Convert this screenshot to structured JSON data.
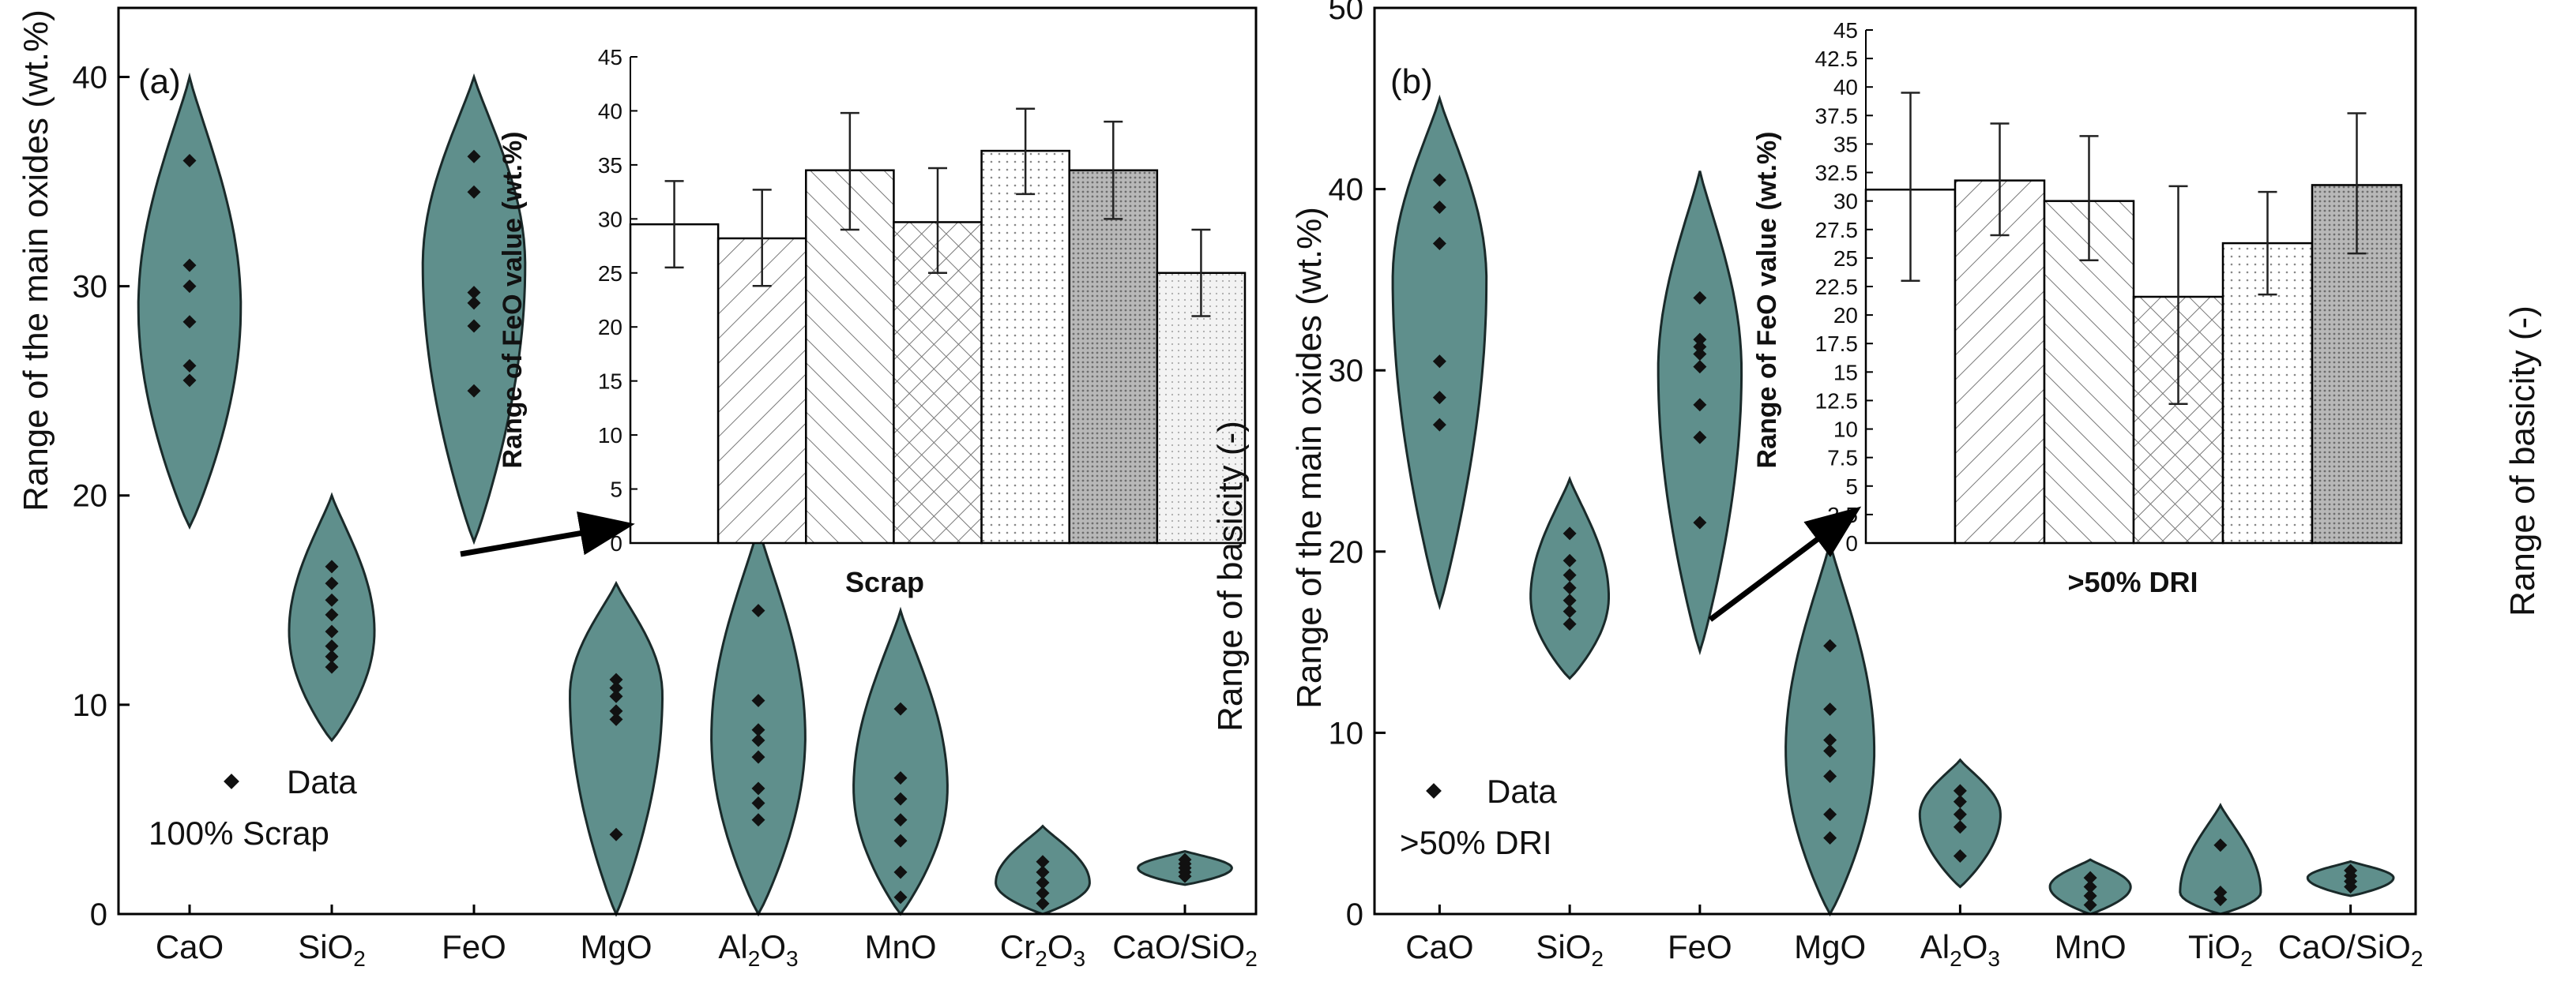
{
  "chart_data": [
    {
      "type": "violin",
      "panel_label": "(a)",
      "ylabel": "Range of the main oxides (wt.%)",
      "right_ylabel": "",
      "ylim": [
        0,
        43
      ],
      "yticks": [
        0,
        10,
        20,
        30,
        40
      ],
      "categories": [
        {
          "name": "CaO",
          "base": "CaO",
          "sub": "",
          "tail": ""
        },
        {
          "name": "SiO2",
          "base": "SiO",
          "sub": "2",
          "tail": ""
        },
        {
          "name": "FeO",
          "base": "FeO",
          "sub": "",
          "tail": ""
        },
        {
          "name": "MgO",
          "base": "MgO",
          "sub": "",
          "tail": ""
        },
        {
          "name": "Al2O3",
          "base": "Al",
          "sub": "2",
          "tail": "O",
          "sub2": "3"
        },
        {
          "name": "MnO",
          "base": "MnO",
          "sub": "",
          "tail": ""
        },
        {
          "name": "Cr2O3",
          "base": "Cr",
          "sub": "2",
          "tail": "O",
          "sub2": "3"
        },
        {
          "name": "CaO/SiO2",
          "base": "CaO/SiO",
          "sub": "2",
          "tail": ""
        }
      ],
      "violins": [
        {
          "category": "CaO",
          "min": 18.5,
          "max": 40,
          "bulge": 29,
          "width": 0.72,
          "points": [
            25.5,
            26.2,
            28.3,
            30.0,
            31.0,
            36.0
          ]
        },
        {
          "category": "SiO2",
          "min": 8.3,
          "max": 20,
          "bulge": 13.5,
          "width": 0.6,
          "points": [
            11.8,
            12.3,
            12.8,
            13.5,
            14.3,
            15.0,
            15.8,
            16.6
          ]
        },
        {
          "category": "FeO",
          "min": 17.8,
          "max": 40,
          "bulge": 31,
          "width": 0.72,
          "points": [
            25.0,
            28.1,
            29.2,
            29.7,
            34.5,
            36.2
          ]
        },
        {
          "category": "MgO",
          "min": 0,
          "max": 15.8,
          "bulge": 10.5,
          "width": 0.65,
          "points": [
            3.8,
            9.3,
            9.7,
            10.4,
            10.8,
            11.2
          ]
        },
        {
          "category": "Al2O3",
          "min": 0,
          "max": 18.5,
          "bulge": 8.5,
          "width": 0.66,
          "points": [
            4.5,
            5.3,
            6.0,
            7.5,
            8.3,
            8.8,
            10.2,
            14.5
          ]
        },
        {
          "category": "MnO",
          "min": 0,
          "max": 14.5,
          "bulge": 6.0,
          "width": 0.66,
          "points": [
            0.8,
            2.0,
            3.5,
            4.5,
            5.5,
            6.5,
            9.8
          ]
        },
        {
          "category": "Cr2O3",
          "min": 0,
          "max": 4.2,
          "bulge": 1.5,
          "width": 0.66,
          "points": [
            0.5,
            1.0,
            1.5,
            2.0,
            2.5
          ]
        },
        {
          "category": "CaO/SiO2",
          "min": 1.4,
          "max": 3.0,
          "bulge": 2.2,
          "width": 0.66,
          "points": [
            1.8,
            2.0,
            2.2,
            2.4,
            2.6
          ]
        }
      ],
      "legend": {
        "marker_label": "Data",
        "note": "100% Scrap"
      },
      "inset": {
        "type": "bar",
        "ylabel": "Range of FeO value (wt.%)",
        "xlabel": "Scrap",
        "ylim": [
          0,
          45
        ],
        "yticks": [
          0,
          5,
          10,
          15,
          20,
          25,
          30,
          35,
          40,
          45
        ],
        "ytick_labels": [
          "0",
          "5",
          "10",
          "15",
          "20",
          "25",
          "30",
          "35",
          "40",
          "45"
        ],
        "bars": [
          {
            "value": 29.5,
            "err_low": 25.5,
            "err_high": 33.5,
            "pattern": "none"
          },
          {
            "value": 28.2,
            "err_low": 23.8,
            "err_high": 32.7,
            "pattern": "diag-fwd"
          },
          {
            "value": 34.5,
            "err_low": 29.0,
            "err_high": 39.8,
            "pattern": "diag-back"
          },
          {
            "value": 29.7,
            "err_low": 25.0,
            "err_high": 34.7,
            "pattern": "cross"
          },
          {
            "value": 36.3,
            "err_low": 32.3,
            "err_high": 40.2,
            "pattern": "dots"
          },
          {
            "value": 34.5,
            "err_low": 30.0,
            "err_high": 39.0,
            "pattern": "dense-dots"
          },
          {
            "value": 25.0,
            "err_low": 21.0,
            "err_high": 29.0,
            "pattern": "light-dots"
          }
        ]
      }
    },
    {
      "type": "violin",
      "panel_label": "(b)",
      "ylabel": "Range of the main oxides (wt.%)",
      "left_outer_label": "Range of basicity (-)",
      "right_ylabel": "Range of basicity (-)",
      "ylim": [
        0,
        50
      ],
      "yticks": [
        0,
        10,
        20,
        30,
        40,
        50
      ],
      "categories": [
        {
          "name": "CaO",
          "base": "CaO",
          "sub": "",
          "tail": ""
        },
        {
          "name": "SiO2",
          "base": "SiO",
          "sub": "2",
          "tail": ""
        },
        {
          "name": "FeO",
          "base": "FeO",
          "sub": "",
          "tail": ""
        },
        {
          "name": "MgO",
          "base": "MgO",
          "sub": "",
          "tail": ""
        },
        {
          "name": "Al2O3",
          "base": "Al",
          "sub": "2",
          "tail": "O",
          "sub2": "3"
        },
        {
          "name": "MnO",
          "base": "MnO",
          "sub": "",
          "tail": ""
        },
        {
          "name": "TiO2",
          "base": "TiO",
          "sub": "2",
          "tail": ""
        },
        {
          "name": "CaO/SiO2",
          "base": "CaO/SiO",
          "sub": "2",
          "tail": ""
        }
      ],
      "violins": [
        {
          "category": "CaO",
          "min": 17,
          "max": 45,
          "bulge": 35,
          "width": 0.72,
          "points": [
            27.0,
            28.5,
            30.5,
            37.0,
            39.0,
            40.5
          ]
        },
        {
          "category": "SiO2",
          "min": 13,
          "max": 24,
          "bulge": 17.5,
          "width": 0.6,
          "points": [
            16.0,
            16.7,
            17.3,
            18.0,
            18.7,
            19.5,
            21.0
          ]
        },
        {
          "category": "FeO",
          "min": 14.5,
          "max": 41,
          "bulge": 30,
          "width": 0.64,
          "points": [
            21.6,
            26.3,
            28.1,
            30.2,
            30.9,
            31.3,
            31.7,
            34.0
          ]
        },
        {
          "category": "MgO",
          "min": 0,
          "max": 20.5,
          "bulge": 9,
          "width": 0.68,
          "points": [
            4.2,
            5.5,
            7.6,
            9.0,
            9.6,
            11.3,
            14.8
          ]
        },
        {
          "category": "Al2O3",
          "min": 1.5,
          "max": 8.5,
          "bulge": 5.5,
          "width": 0.62,
          "points": [
            3.2,
            4.8,
            5.5,
            6.2,
            6.8
          ]
        },
        {
          "category": "MnO",
          "min": 0,
          "max": 3.0,
          "bulge": 1.5,
          "width": 0.62,
          "points": [
            0.5,
            1.0,
            1.5,
            2.0
          ]
        },
        {
          "category": "TiO2",
          "min": 0,
          "max": 6.0,
          "bulge": 1.2,
          "width": 0.62,
          "points": [
            0.8,
            1.2,
            3.8
          ]
        },
        {
          "category": "CaO/SiO2",
          "min": 1.0,
          "max": 2.9,
          "bulge": 2.0,
          "width": 0.66,
          "points": [
            1.5,
            1.8,
            2.1,
            2.4
          ]
        }
      ],
      "legend": {
        "marker_label": "Data",
        "note": ">50% DRI"
      },
      "inset": {
        "type": "bar",
        "ylabel": "Range of FeO value (wt.%)",
        "xlabel": ">50% DRI",
        "ylim": [
          0,
          45
        ],
        "yticks": [
          0,
          2.5,
          5,
          7.5,
          10,
          12.5,
          15,
          17.5,
          20,
          22.5,
          25,
          27.5,
          30,
          32.5,
          35,
          37.5,
          40,
          42.5,
          45
        ],
        "ytick_labels": [
          "0",
          "2.5",
          "5",
          "7.5",
          "10",
          "12.5",
          "15",
          "17.5",
          "20",
          "22.5",
          "25",
          "27.5",
          "30",
          "32.5",
          "35",
          "37.5",
          "40",
          "42.5",
          "45"
        ],
        "bars": [
          {
            "value": 31.0,
            "err_low": 23.0,
            "err_high": 39.5,
            "pattern": "none"
          },
          {
            "value": 31.8,
            "err_low": 27.0,
            "err_high": 36.8,
            "pattern": "diag-fwd"
          },
          {
            "value": 30.0,
            "err_low": 24.8,
            "err_high": 35.7,
            "pattern": "diag-back"
          },
          {
            "value": 21.6,
            "err_low": 12.2,
            "err_high": 31.3,
            "pattern": "cross"
          },
          {
            "value": 26.3,
            "err_low": 21.8,
            "err_high": 30.8,
            "pattern": "dots"
          },
          {
            "value": 31.4,
            "err_low": 25.4,
            "err_high": 37.7,
            "pattern": "dense-dots"
          }
        ]
      }
    }
  ]
}
